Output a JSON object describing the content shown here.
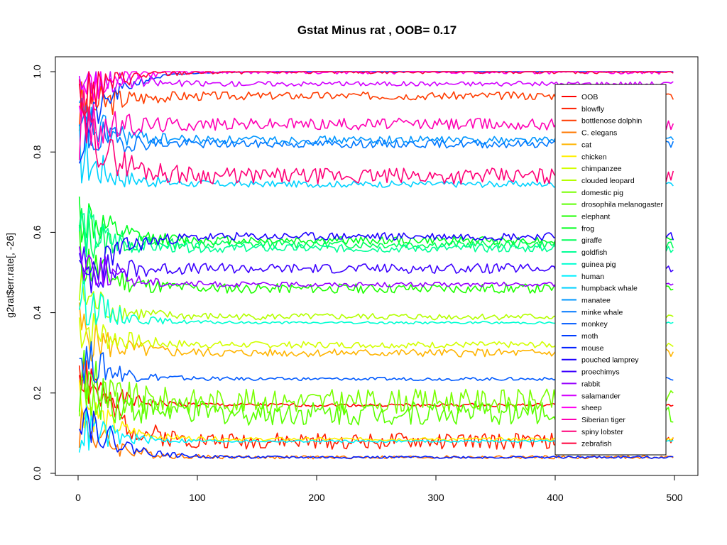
{
  "chart_data": {
    "type": "line",
    "title": "Gstat Minus rat , OOB= 0.17",
    "xlabel": "",
    "ylabel": "g2rat$err.rate[, -26]",
    "xlim": [
      0,
      500
    ],
    "ylim": [
      0,
      1
    ],
    "x_ticks": [
      0,
      100,
      200,
      300,
      400,
      500
    ],
    "y_ticks": [
      0.0,
      0.2,
      0.4,
      0.6,
      0.8,
      1.0
    ],
    "y_tick_labels": [
      "0.0",
      "0.2",
      "0.4",
      "0.6",
      "0.8",
      "1.0"
    ],
    "grid": false,
    "legend_position": "top-right",
    "series": [
      {
        "name": "OOB",
        "color": "#FF0000",
        "start": 0.24,
        "end": 0.17,
        "noise": 0.004
      },
      {
        "name": "blowfly",
        "color": "#FF1E00",
        "start": 0.3,
        "end": 0.08,
        "noise": 0.02
      },
      {
        "name": "bottlenose dolphin",
        "color": "#FF3C00",
        "start": 0.9,
        "end": 0.94,
        "noise": 0.01
      },
      {
        "name": "C. elegans",
        "color": "#FF7800",
        "start": 0.14,
        "end": 0.04,
        "noise": 0.004
      },
      {
        "name": "cat",
        "color": "#FFB400",
        "start": 0.36,
        "end": 0.3,
        "noise": 0.01
      },
      {
        "name": "chicken",
        "color": "#FFF000",
        "start": 0.2,
        "end": 0.085,
        "noise": 0.004
      },
      {
        "name": "chimpanzee",
        "color": "#D2FF00",
        "start": 0.38,
        "end": 0.32,
        "noise": 0.008
      },
      {
        "name": "clouded leopard",
        "color": "#B4FF00",
        "start": 0.45,
        "end": 0.39,
        "noise": 0.008
      },
      {
        "name": "domestic pig",
        "color": "#78FF00",
        "start": 0.2,
        "end": 0.18,
        "noise": 0.03
      },
      {
        "name": "drosophila melanogaster",
        "color": "#5AFF00",
        "start": 0.25,
        "end": 0.15,
        "noise": 0.03
      },
      {
        "name": "elephant",
        "color": "#1EFF00",
        "start": 0.55,
        "end": 0.46,
        "noise": 0.012
      },
      {
        "name": "frog",
        "color": "#00FF1E",
        "start": 0.65,
        "end": 0.58,
        "noise": 0.01
      },
      {
        "name": "giraffe",
        "color": "#00FF5A",
        "start": 0.6,
        "end": 0.57,
        "noise": 0.01
      },
      {
        "name": "goldfish",
        "color": "#00FF96",
        "start": 0.62,
        "end": 0.56,
        "noise": 0.01
      },
      {
        "name": "guinea pig",
        "color": "#00FFD2",
        "start": 0.45,
        "end": 0.375,
        "noise": 0.003
      },
      {
        "name": "human",
        "color": "#00F0FF",
        "start": 0.12,
        "end": 0.08,
        "noise": 0.003
      },
      {
        "name": "humpback whale",
        "color": "#00D2FF",
        "start": 0.8,
        "end": 0.72,
        "noise": 0.008
      },
      {
        "name": "manatee",
        "color": "#0096FF",
        "start": 0.88,
        "end": 0.83,
        "noise": 0.01
      },
      {
        "name": "minke whale",
        "color": "#0078FF",
        "start": 0.85,
        "end": 0.82,
        "noise": 0.01
      },
      {
        "name": "monkey",
        "color": "#005AFF",
        "start": 0.3,
        "end": 0.235,
        "noise": 0.004
      },
      {
        "name": "moth",
        "color": "#003CFF",
        "start": 0.8,
        "end": 1.0,
        "noise": 0.0
      },
      {
        "name": "mouse",
        "color": "#001EFF",
        "start": 0.18,
        "end": 0.04,
        "noise": 0.003
      },
      {
        "name": "pouched lamprey",
        "color": "#1E00FF",
        "start": 0.45,
        "end": 0.59,
        "noise": 0.01
      },
      {
        "name": "proechimys",
        "color": "#3C00FF",
        "start": 0.5,
        "end": 0.51,
        "noise": 0.012
      },
      {
        "name": "rabbit",
        "color": "#9600FF",
        "start": 0.55,
        "end": 0.47,
        "noise": 0.006
      },
      {
        "name": "salamander",
        "color": "#D200FF",
        "start": 1.0,
        "end": 0.97,
        "noise": 0.006
      },
      {
        "name": "sheep",
        "color": "#FF00F0",
        "start": 0.95,
        "end": 1.0,
        "noise": 0.006
      },
      {
        "name": "Siberian tiger",
        "color": "#FF00B4",
        "start": 0.85,
        "end": 0.87,
        "noise": 0.015
      },
      {
        "name": "spiny lobster",
        "color": "#FF0078",
        "start": 0.9,
        "end": 0.74,
        "noise": 0.02
      },
      {
        "name": "zebrafish",
        "color": "#FF003C",
        "start": 0.92,
        "end": 1.0,
        "noise": 0.005
      }
    ]
  }
}
